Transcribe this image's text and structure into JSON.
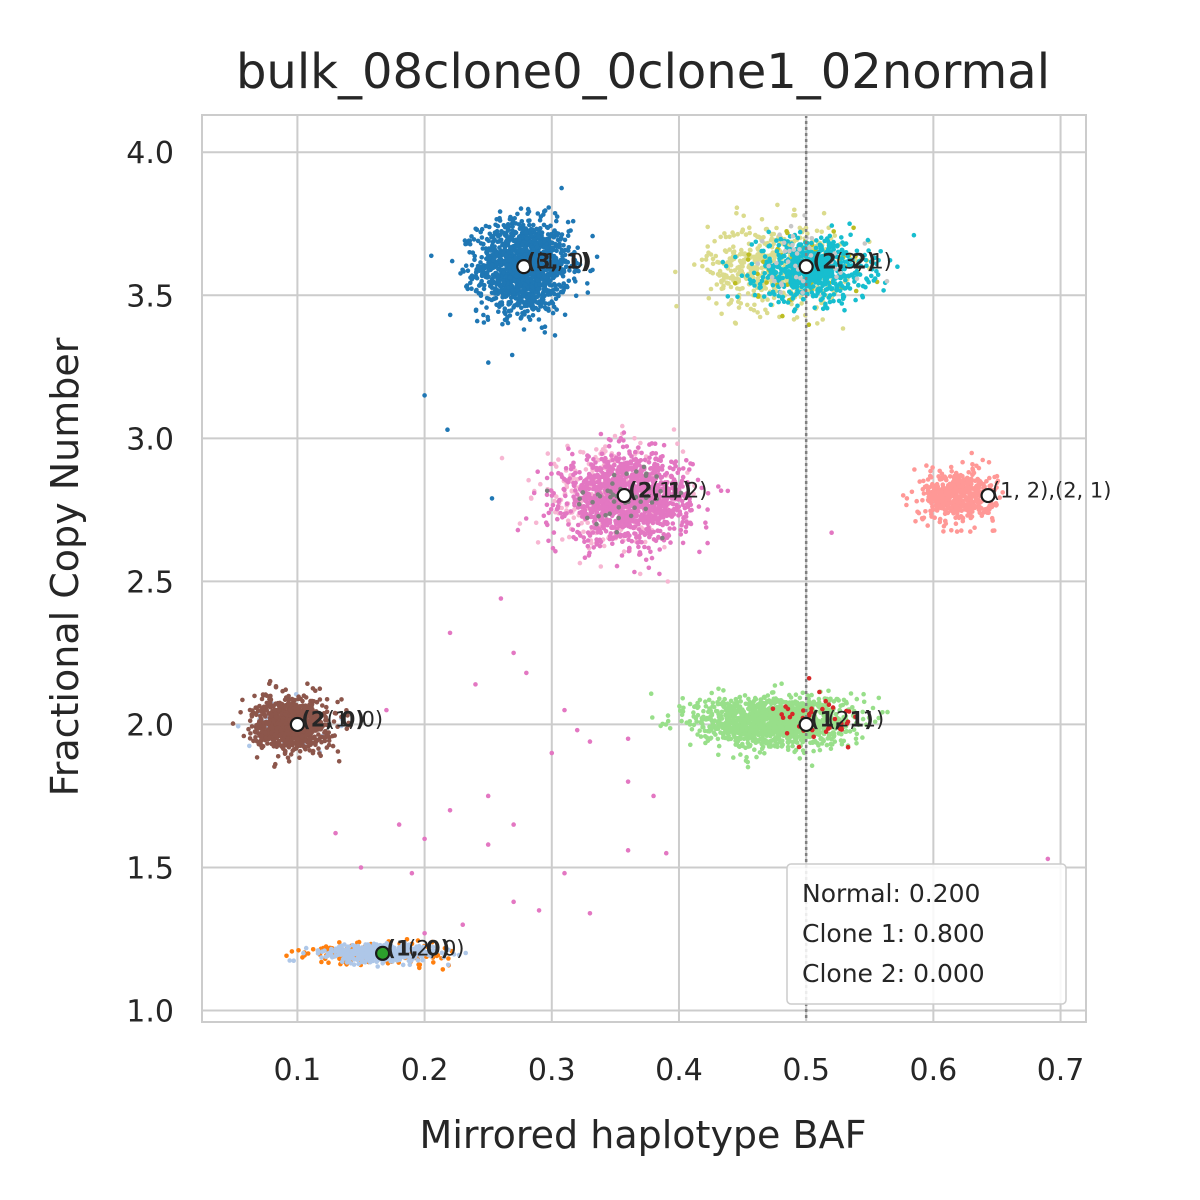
{
  "chart_data": {
    "type": "scatter",
    "title": "bulk_08clone0_0clone1_02normal",
    "xlabel": "Mirrored haplotype BAF",
    "ylabel": "Fractional Copy Number",
    "xlim": [
      0.025,
      0.72
    ],
    "ylim": [
      0.96,
      4.13
    ],
    "x_ticks": [
      "0.1",
      "0.2",
      "0.3",
      "0.4",
      "0.5",
      "0.6",
      "0.7"
    ],
    "y_ticks": [
      "1.0",
      "1.5",
      "2.0",
      "2.5",
      "3.0",
      "3.5",
      "4.0"
    ],
    "grid": true,
    "reference_line": {
      "x": 0.5,
      "style": "dotted"
    },
    "clusters": [
      {
        "color": "#1f77b4",
        "cx": 0.278,
        "cy": 3.6,
        "sx": 0.018,
        "sy": 0.08,
        "n": 1400
      },
      {
        "color": "#dbdb8d",
        "cx": 0.475,
        "cy": 3.6,
        "sx": 0.026,
        "sy": 0.075,
        "n": 550
      },
      {
        "color": "#bcbd22",
        "cx": 0.5,
        "cy": 3.6,
        "sx": 0.024,
        "sy": 0.07,
        "n": 60
      },
      {
        "color": "#17becf",
        "cx": 0.505,
        "cy": 3.59,
        "sx": 0.022,
        "sy": 0.055,
        "n": 650
      },
      {
        "color": "#c7c7c7",
        "cx": 0.49,
        "cy": 3.6,
        "sx": 0.03,
        "sy": 0.07,
        "n": 40
      },
      {
        "color": "#f7b6d2",
        "cx": 0.345,
        "cy": 2.79,
        "sx": 0.028,
        "sy": 0.085,
        "n": 300
      },
      {
        "color": "#e377c2",
        "cx": 0.36,
        "cy": 2.79,
        "sx": 0.024,
        "sy": 0.075,
        "n": 1300
      },
      {
        "color": "#7f7f7f",
        "cx": 0.355,
        "cy": 2.8,
        "sx": 0.02,
        "sy": 0.05,
        "n": 50
      },
      {
        "color": "#ff9896",
        "cx": 0.62,
        "cy": 2.8,
        "sx": 0.014,
        "sy": 0.045,
        "n": 500
      },
      {
        "color": "#98df8a",
        "cx": 0.475,
        "cy": 2.01,
        "sx": 0.03,
        "sy": 0.045,
        "n": 1300
      },
      {
        "color": "#d62728",
        "cx": 0.51,
        "cy": 2.01,
        "sx": 0.018,
        "sy": 0.04,
        "n": 40
      },
      {
        "color": "#aec7e8",
        "cx": 0.09,
        "cy": 2.0,
        "sx": 0.014,
        "sy": 0.04,
        "n": 60
      },
      {
        "color": "#8c564b",
        "cx": 0.095,
        "cy": 2.0,
        "sx": 0.014,
        "sy": 0.045,
        "n": 900
      },
      {
        "color": "#ff7f0e",
        "cx": 0.165,
        "cy": 1.2,
        "sx": 0.026,
        "sy": 0.018,
        "n": 250
      },
      {
        "color": "#aec7e8",
        "cx": 0.165,
        "cy": 1.2,
        "sx": 0.022,
        "sy": 0.016,
        "n": 450
      }
    ],
    "stray_points": {
      "color": "#e377c2",
      "points": [
        [
          0.22,
          2.32
        ],
        [
          0.26,
          2.44
        ],
        [
          0.27,
          2.25
        ],
        [
          0.28,
          2.18
        ],
        [
          0.31,
          2.05
        ],
        [
          0.32,
          1.98
        ],
        [
          0.33,
          1.94
        ],
        [
          0.3,
          1.9
        ],
        [
          0.36,
          1.8
        ],
        [
          0.38,
          1.75
        ],
        [
          0.22,
          1.7
        ],
        [
          0.18,
          1.65
        ],
        [
          0.27,
          1.65
        ],
        [
          0.13,
          1.62
        ],
        [
          0.25,
          1.58
        ],
        [
          0.2,
          1.6
        ],
        [
          0.15,
          1.5
        ],
        [
          0.19,
          1.48
        ],
        [
          0.31,
          1.48
        ],
        [
          0.36,
          1.56
        ],
        [
          0.39,
          1.55
        ],
        [
          0.29,
          1.35
        ],
        [
          0.27,
          1.38
        ],
        [
          0.23,
          1.3
        ],
        [
          0.33,
          1.34
        ],
        [
          0.2,
          1.27
        ],
        [
          0.24,
          2.14
        ],
        [
          0.36,
          1.95
        ],
        [
          0.52,
          2.67
        ],
        [
          0.69,
          1.53
        ],
        [
          0.17,
          2.05
        ],
        [
          0.25,
          1.75
        ]
      ]
    },
    "stray_blue": [
      [
        0.2,
        3.15
      ],
      [
        0.218,
        3.03
      ],
      [
        0.253,
        2.79
      ]
    ],
    "centroids": [
      {
        "x": 0.278,
        "y": 3.6,
        "fill": "#ffffff"
      },
      {
        "x": 0.5,
        "y": 3.6,
        "fill": "#ffffff"
      },
      {
        "x": 0.357,
        "y": 2.8,
        "fill": "#ffffff"
      },
      {
        "x": 0.643,
        "y": 2.8,
        "fill": "#ffffff"
      },
      {
        "x": 0.1,
        "y": 2.0,
        "fill": "#ffffff"
      },
      {
        "x": 0.5,
        "y": 2.0,
        "fill": "#ffffff"
      },
      {
        "x": 0.167,
        "y": 1.2,
        "fill": "#2ca02c"
      }
    ],
    "annotations": [
      {
        "x": 0.28,
        "y": 3.6,
        "text": "(3, 1)",
        "bold": true
      },
      {
        "x": 0.287,
        "y": 3.6,
        "text": "(1, 0)",
        "bold": false
      },
      {
        "x": 0.505,
        "y": 3.6,
        "text": "(2, 2)",
        "bold": true
      },
      {
        "x": 0.523,
        "y": 3.6,
        "text": "(3, 1)",
        "bold": false
      },
      {
        "x": 0.36,
        "y": 2.8,
        "text": "(2, 1)",
        "bold": true
      },
      {
        "x": 0.378,
        "y": 2.8,
        "text": "(1, 2)",
        "bold": false
      },
      {
        "x": 0.646,
        "y": 2.8,
        "text": "(1, 2),(2, 1)",
        "bold": false
      },
      {
        "x": 0.103,
        "y": 2.0,
        "text": "(2, 0)",
        "bold": true
      },
      {
        "x": 0.123,
        "y": 2.0,
        "text": "(1, 0)",
        "bold": false
      },
      {
        "x": 0.503,
        "y": 2.0,
        "text": "(1, 1)",
        "bold": true
      },
      {
        "x": 0.517,
        "y": 2.0,
        "text": "(2, 1)",
        "bold": false
      },
      {
        "x": 0.17,
        "y": 1.2,
        "text": "(1, 0)",
        "bold": true
      },
      {
        "x": 0.187,
        "y": 1.2,
        "text": "(2, 0)",
        "bold": false
      }
    ],
    "legend": {
      "placement": "bottom-right",
      "lines": [
        "Normal: 0.200",
        "Clone 1: 0.800",
        "Clone 2: 0.000"
      ]
    }
  }
}
